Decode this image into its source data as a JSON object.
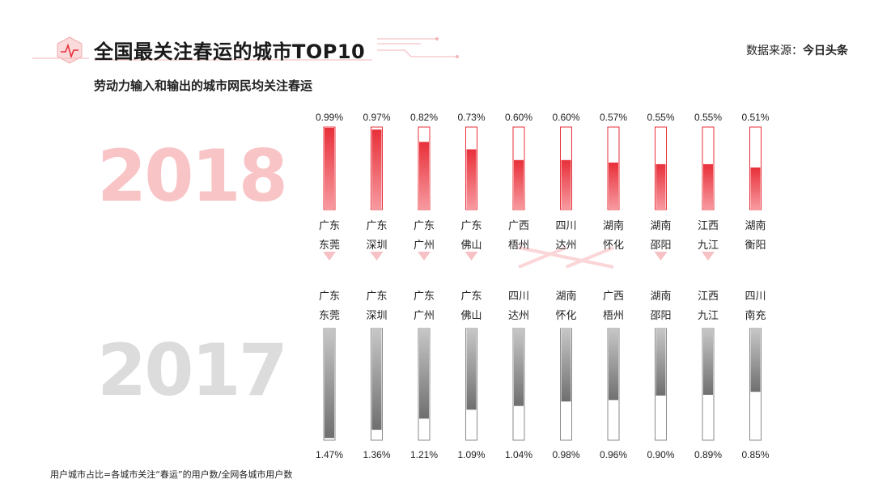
{
  "header": {
    "title": "全国最关注春运的城市TOP10",
    "subtitle": "劳动力输入和输出的城市网民均关注春运",
    "source_prefix": "数据来源：",
    "source_brand": "今日头条"
  },
  "footnote": "用户城市占比=各城市关注“春运”的用户数/全网各城市用户数",
  "colors": {
    "accent": "#e8303a",
    "accent_light": "#f9c4c6",
    "gray_bar": "#7d7d7d",
    "year_2017": "#dcdcdc"
  },
  "chart_data": [
    {
      "type": "bar",
      "year_label": "2018",
      "max": 1.0,
      "categories": [
        [
          "广东",
          "东莞"
        ],
        [
          "广东",
          "深圳"
        ],
        [
          "广东",
          "广州"
        ],
        [
          "广东",
          "佛山"
        ],
        [
          "广西",
          "梧州"
        ],
        [
          "四川",
          "达州"
        ],
        [
          "湖南",
          "怀化"
        ],
        [
          "湖南",
          "邵阳"
        ],
        [
          "江西",
          "九江"
        ],
        [
          "湖南",
          "衡阳"
        ]
      ],
      "values": [
        0.99,
        0.97,
        0.82,
        0.73,
        0.6,
        0.6,
        0.57,
        0.55,
        0.55,
        0.51
      ],
      "value_labels": [
        "0.99%",
        "0.97%",
        "0.82%",
        "0.73%",
        "0.60%",
        "0.60%",
        "0.57%",
        "0.55%",
        "0.55%",
        "0.51%"
      ]
    },
    {
      "type": "bar",
      "year_label": "2017",
      "max": 1.5,
      "categories": [
        [
          "广东",
          "东莞"
        ],
        [
          "广东",
          "深圳"
        ],
        [
          "广东",
          "广州"
        ],
        [
          "广东",
          "佛山"
        ],
        [
          "四川",
          "达州"
        ],
        [
          "湖南",
          "怀化"
        ],
        [
          "广西",
          "梧州"
        ],
        [
          "湖南",
          "邵阳"
        ],
        [
          "江西",
          "九江"
        ],
        [
          "四川",
          "南充"
        ]
      ],
      "values": [
        1.47,
        1.36,
        1.21,
        1.09,
        1.04,
        0.98,
        0.96,
        0.9,
        0.89,
        0.85
      ],
      "value_labels": [
        "1.47%",
        "1.36%",
        "1.21%",
        "1.09%",
        "1.04%",
        "0.98%",
        "0.96%",
        "0.90%",
        "0.89%",
        "0.85%"
      ]
    }
  ]
}
